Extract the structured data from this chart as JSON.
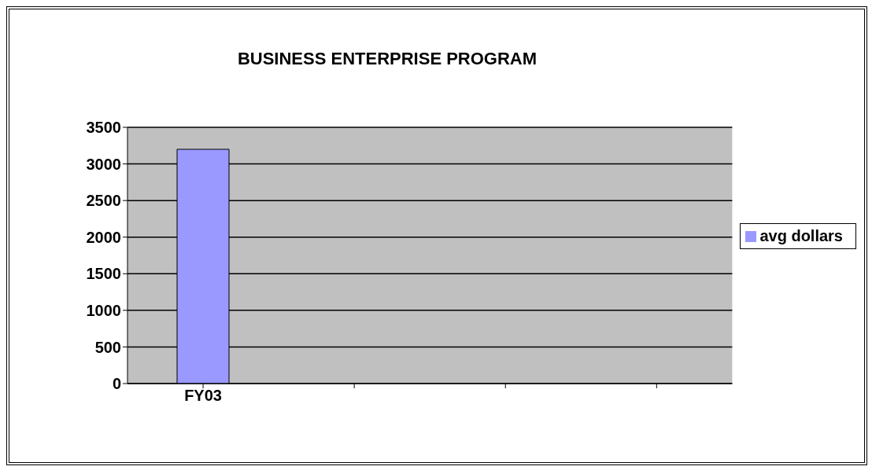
{
  "chart_data": {
    "type": "bar",
    "title": "BUSINESS ENTERPRISE PROGRAM",
    "categories": [
      "FY03",
      null,
      null,
      null
    ],
    "series": [
      {
        "name": "avg dollars",
        "color": "#9999ff",
        "values": [
          3200,
          null,
          null,
          null
        ]
      }
    ],
    "ylim": [
      0,
      3500
    ],
    "yticks": [
      0,
      500,
      1000,
      1500,
      2000,
      2500,
      3000,
      3500
    ],
    "grid": "y",
    "legend": "right"
  }
}
